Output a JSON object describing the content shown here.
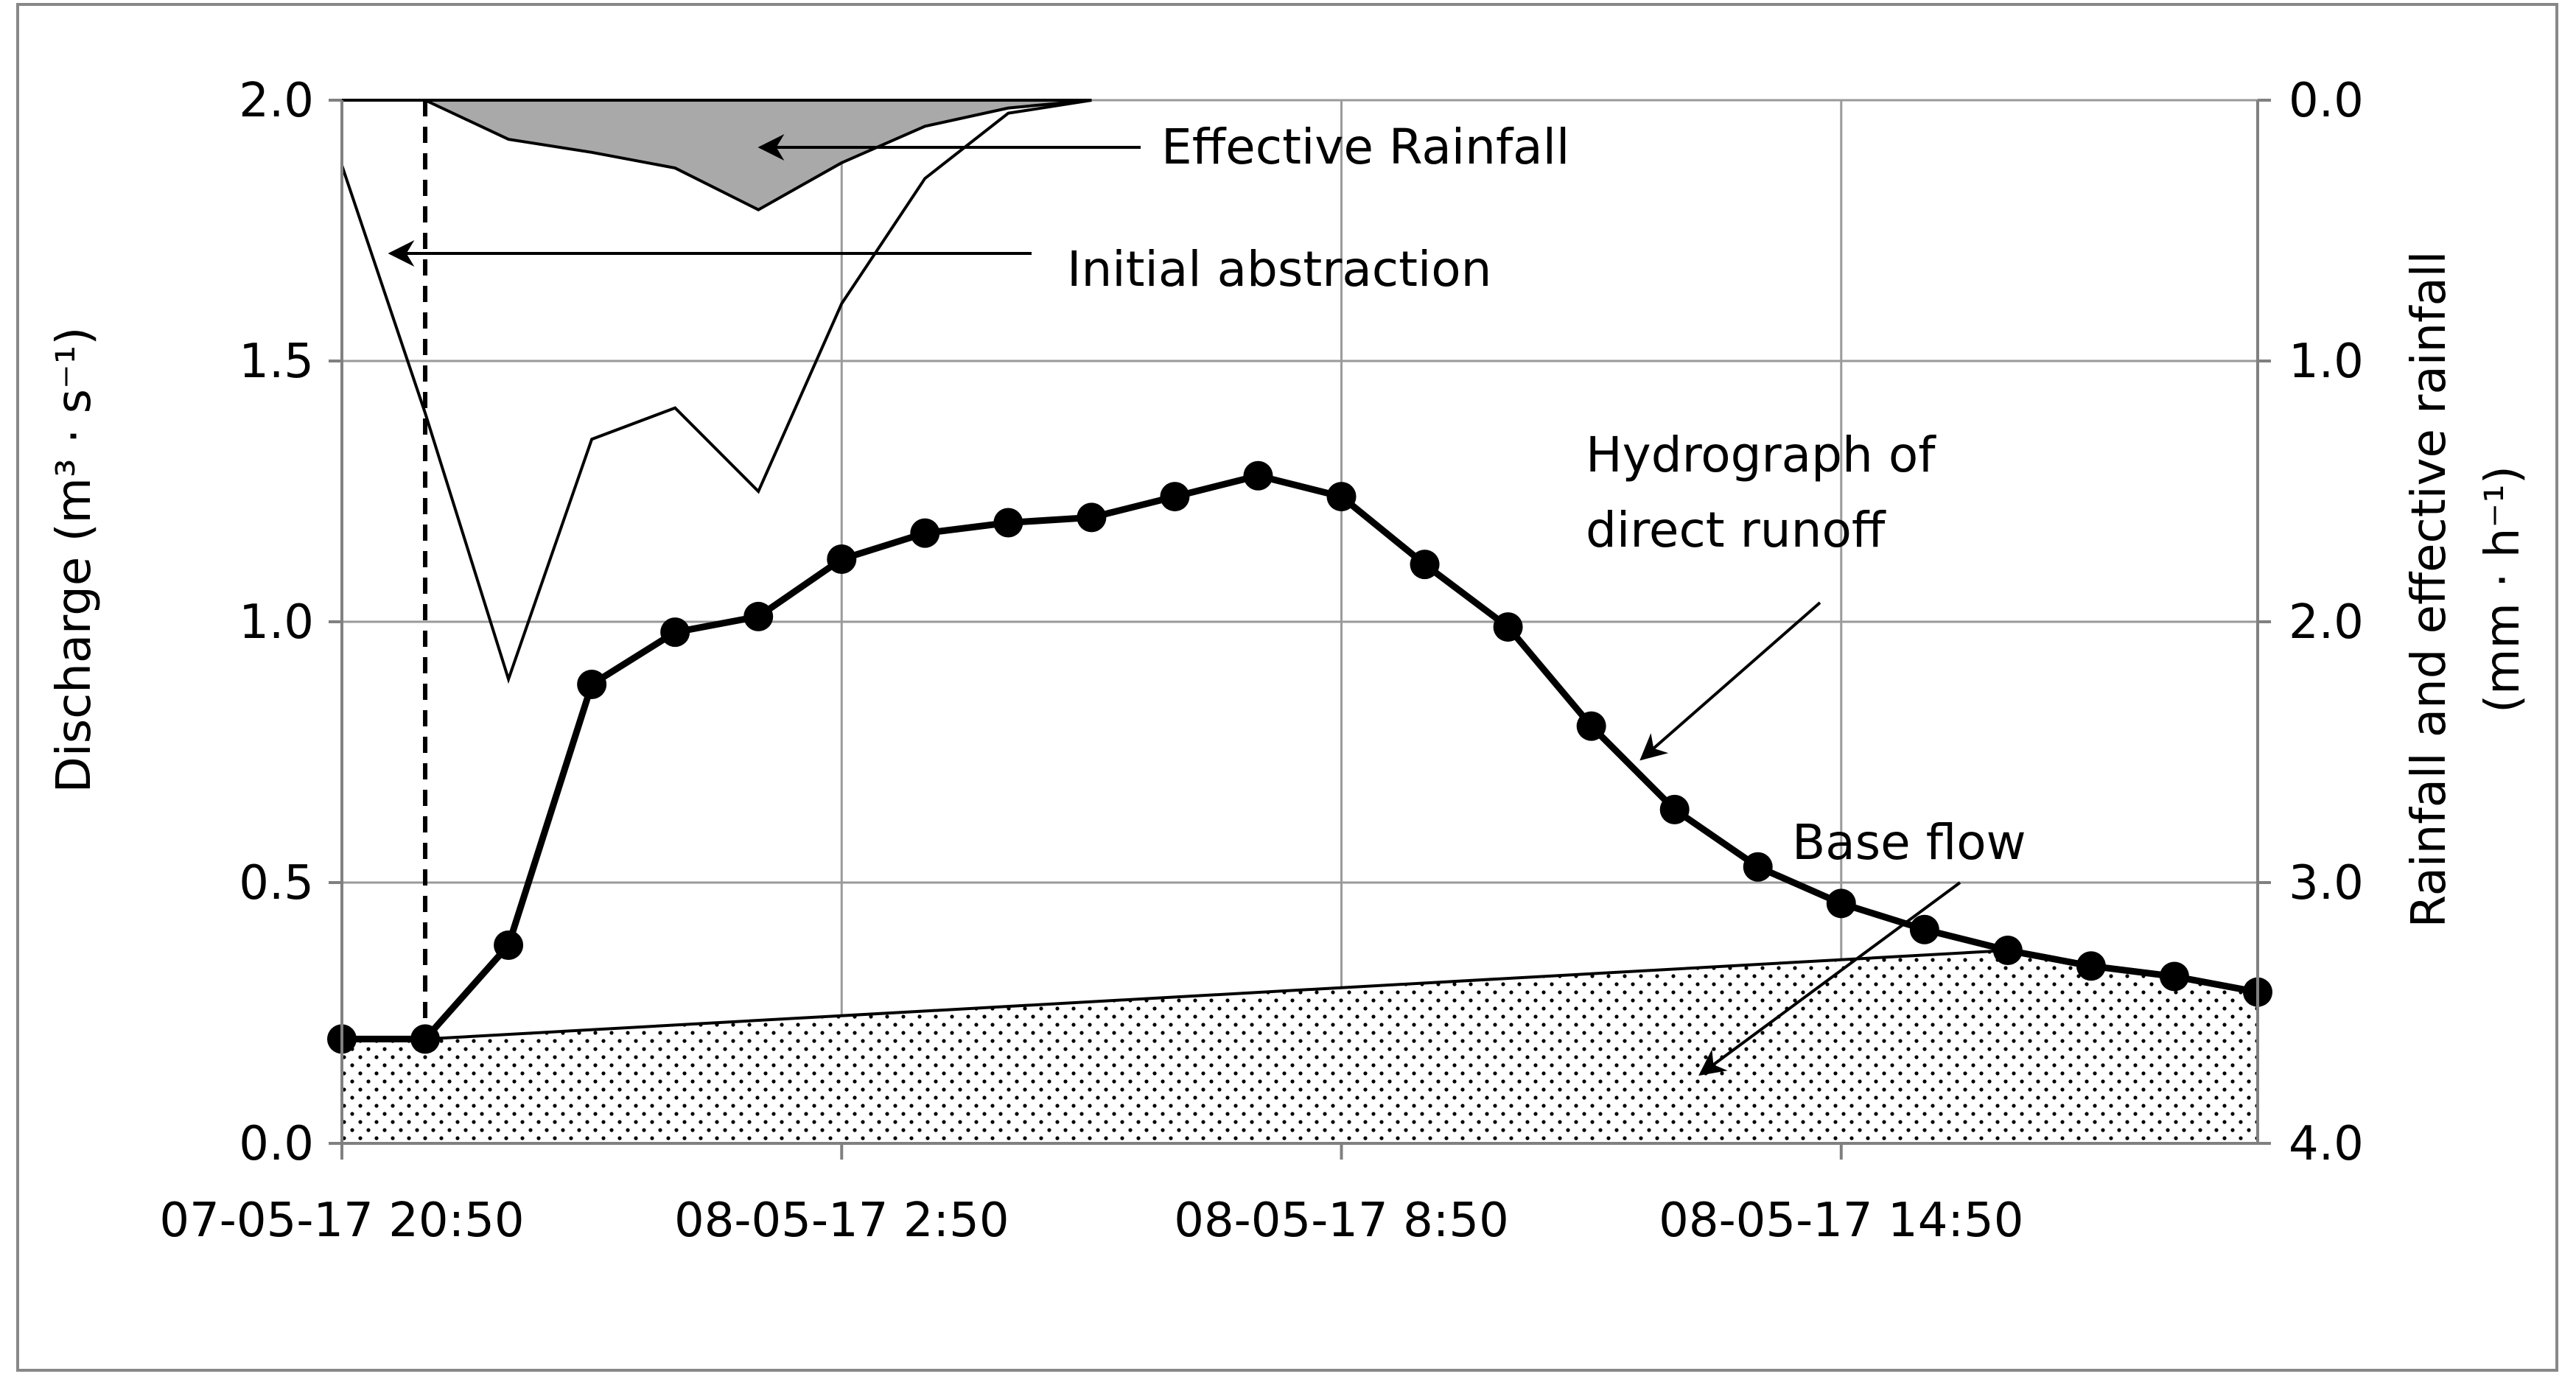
{
  "chart_data": {
    "type": "line",
    "title": "",
    "xlabel": "",
    "ylabel_left": "Discharge (m³ · s⁻¹)",
    "ylabel_right_line1": "Rainfall and effective rainfall",
    "ylabel_right_line2": "(mm · h⁻¹)",
    "x_hours": {
      "start_label": "07-05-17 20:50",
      "range": [
        0,
        23
      ],
      "step": 1
    },
    "x_ticks": [
      {
        "hour": 0,
        "label": "07-05-17 20:50"
      },
      {
        "hour": 6,
        "label": "08-05-17 2:50"
      },
      {
        "hour": 12,
        "label": "08-05-17 8:50"
      },
      {
        "hour": 18,
        "label": "08-05-17 14:50"
      }
    ],
    "ylim_left": [
      0,
      2
    ],
    "y_ticks_left": [
      "0.0",
      "0.5",
      "1.0",
      "1.5",
      "2.0"
    ],
    "ylim_right_inverted": [
      0,
      4
    ],
    "y_ticks_right": [
      "0.0",
      "1.0",
      "2.0",
      "3.0",
      "4.0"
    ],
    "grid": true,
    "series": [
      {
        "name": "Hydrograph of direct runoff",
        "axis": "left",
        "style": "thick line with markers",
        "x": [
          0,
          1,
          2,
          3,
          4,
          5,
          6,
          7,
          8,
          9,
          10,
          11,
          12,
          13,
          14,
          15,
          16,
          17,
          18,
          19,
          20,
          21,
          22,
          23
        ],
        "values": [
          0.2,
          0.2,
          0.38,
          0.88,
          0.98,
          1.01,
          1.12,
          1.17,
          1.19,
          1.2,
          1.24,
          1.28,
          1.24,
          1.11,
          0.99,
          0.8,
          0.64,
          0.53,
          0.46,
          0.41,
          0.37,
          0.34,
          0.32,
          0.29
        ]
      },
      {
        "name": "Base flow",
        "axis": "left",
        "style": "dotted fill",
        "x": [
          0,
          1,
          20,
          23
        ],
        "values": [
          0.2,
          0.2,
          0.37,
          0.29
        ]
      },
      {
        "name": "Rainfall",
        "axis": "right",
        "style": "thin line",
        "x": [
          0,
          1,
          2,
          3,
          4,
          5,
          6,
          7,
          8,
          9
        ],
        "values": [
          0.25,
          1.2,
          2.22,
          1.3,
          1.18,
          1.5,
          0.78,
          0.3,
          0.05,
          0.0
        ]
      },
      {
        "name": "Effective Rainfall",
        "axis": "right",
        "style": "gray fill",
        "x": [
          1,
          2,
          3,
          4,
          5,
          6,
          7,
          8,
          9
        ],
        "values": [
          0.0,
          0.15,
          0.2,
          0.26,
          0.42,
          0.24,
          0.1,
          0.03,
          0.0
        ]
      }
    ],
    "initial_abstraction_marker_hour": 1,
    "annotations": {
      "effective_rainfall": "Effective Rainfall",
      "initial_abstraction": "Initial abstraction",
      "hydrograph_line1": "Hydrograph of",
      "hydrograph_line2": "direct runoff",
      "base_flow": "Base flow"
    }
  }
}
